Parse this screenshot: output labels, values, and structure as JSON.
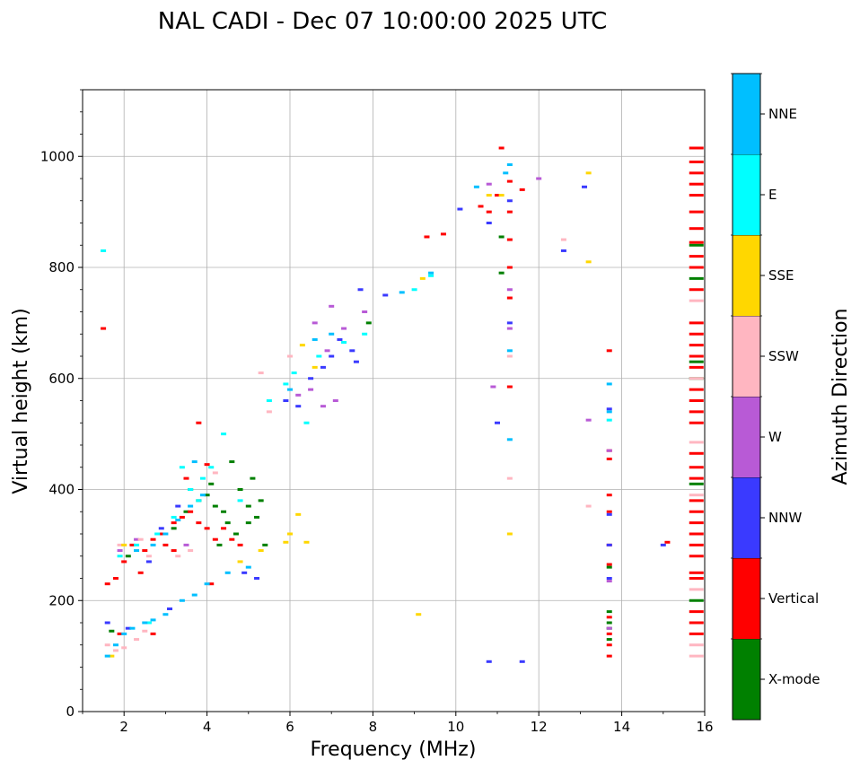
{
  "chart_data": {
    "type": "scatter",
    "title": "NAL CADI - Dec 07 10:00:00 2025 UTC",
    "xlabel": "Frequency (MHz)",
    "ylabel": "Virtual height (km)",
    "xlim": [
      1,
      16
    ],
    "ylim": [
      0,
      1120
    ],
    "xticks": [
      2,
      4,
      6,
      8,
      10,
      12,
      14,
      16
    ],
    "yticks": [
      0,
      200,
      400,
      600,
      800,
      1000
    ],
    "grid": true,
    "colorbar": {
      "label": "Azimuth Direction",
      "placement": "right",
      "categories": [
        {
          "name": "X-mode",
          "color": "#008000"
        },
        {
          "name": "Vertical",
          "color": "#ff0000"
        },
        {
          "name": "NNW",
          "color": "#3a3aff"
        },
        {
          "name": "W",
          "color": "#b85ad6"
        },
        {
          "name": "SSW",
          "color": "#ffb6c1"
        },
        {
          "name": "SSE",
          "color": "#ffd700"
        },
        {
          "name": "E",
          "color": "#00ffff"
        },
        {
          "name": "NNE",
          "color": "#00bfff"
        }
      ]
    },
    "series": [
      {
        "name": "X-mode",
        "points": [
          [
            1.7,
            145
          ],
          [
            2.1,
            280
          ],
          [
            3.2,
            330
          ],
          [
            3.5,
            360
          ],
          [
            3.8,
            380
          ],
          [
            4.0,
            390
          ],
          [
            4.1,
            410
          ],
          [
            4.2,
            370
          ],
          [
            4.4,
            360
          ],
          [
            4.5,
            340
          ],
          [
            4.7,
            320
          ],
          [
            4.8,
            400
          ],
          [
            5.0,
            340
          ],
          [
            5.0,
            370
          ],
          [
            5.2,
            350
          ],
          [
            5.3,
            380
          ],
          [
            5.4,
            300
          ],
          [
            4.3,
            300
          ],
          [
            3.6,
            400
          ],
          [
            4.6,
            450
          ],
          [
            5.1,
            420
          ],
          [
            7.9,
            700
          ],
          [
            11.1,
            855
          ],
          [
            11.1,
            790
          ],
          [
            13.7,
            180
          ],
          [
            13.7,
            160
          ],
          [
            13.7,
            150
          ],
          [
            13.7,
            130
          ],
          [
            13.7,
            260
          ],
          [
            15.8,
            200
          ],
          [
            15.8,
            410
          ],
          [
            15.8,
            600
          ],
          [
            15.8,
            630
          ],
          [
            15.8,
            780
          ],
          [
            15.8,
            840
          ]
        ]
      },
      {
        "name": "Vertical",
        "points": [
          [
            1.5,
            690
          ],
          [
            1.6,
            230
          ],
          [
            1.8,
            240
          ],
          [
            2.0,
            270
          ],
          [
            2.2,
            300
          ],
          [
            2.5,
            290
          ],
          [
            2.7,
            310
          ],
          [
            2.9,
            320
          ],
          [
            3.0,
            300
          ],
          [
            3.2,
            340
          ],
          [
            3.4,
            350
          ],
          [
            3.6,
            360
          ],
          [
            3.8,
            340
          ],
          [
            4.0,
            330
          ],
          [
            4.2,
            310
          ],
          [
            4.4,
            330
          ],
          [
            4.6,
            310
          ],
          [
            4.8,
            300
          ],
          [
            3.5,
            420
          ],
          [
            4.0,
            445
          ],
          [
            3.8,
            520
          ],
          [
            4.1,
            230
          ],
          [
            3.2,
            290
          ],
          [
            2.4,
            250
          ],
          [
            2.7,
            140
          ],
          [
            1.9,
            140
          ],
          [
            9.3,
            855
          ],
          [
            9.7,
            860
          ],
          [
            10.6,
            910
          ],
          [
            10.8,
            900
          ],
          [
            11.0,
            930
          ],
          [
            11.3,
            955
          ],
          [
            11.3,
            900
          ],
          [
            11.3,
            850
          ],
          [
            11.3,
            800
          ],
          [
            11.3,
            745
          ],
          [
            11.3,
            585
          ],
          [
            11.6,
            940
          ],
          [
            11.1,
            1015
          ],
          [
            13.7,
            650
          ],
          [
            13.7,
            470
          ],
          [
            13.7,
            455
          ],
          [
            13.7,
            390
          ],
          [
            13.7,
            360
          ],
          [
            13.7,
            300
          ],
          [
            13.7,
            265
          ],
          [
            13.7,
            170
          ],
          [
            13.7,
            140
          ],
          [
            13.7,
            120
          ],
          [
            13.7,
            100
          ],
          [
            15.1,
            305
          ],
          [
            15.8,
            1015
          ],
          [
            15.8,
            990
          ],
          [
            15.8,
            970
          ],
          [
            15.8,
            950
          ],
          [
            15.8,
            930
          ],
          [
            15.8,
            900
          ],
          [
            15.8,
            870
          ],
          [
            15.8,
            845
          ],
          [
            15.8,
            820
          ],
          [
            15.8,
            800
          ],
          [
            15.8,
            760
          ],
          [
            15.8,
            700
          ],
          [
            15.8,
            680
          ],
          [
            15.8,
            660
          ],
          [
            15.8,
            640
          ],
          [
            15.8,
            620
          ],
          [
            15.8,
            580
          ],
          [
            15.8,
            560
          ],
          [
            15.8,
            540
          ],
          [
            15.8,
            520
          ],
          [
            15.8,
            465
          ],
          [
            15.8,
            440
          ],
          [
            15.8,
            420
          ],
          [
            15.8,
            380
          ],
          [
            15.8,
            360
          ],
          [
            15.8,
            340
          ],
          [
            15.8,
            320
          ],
          [
            15.8,
            300
          ],
          [
            15.8,
            280
          ],
          [
            15.8,
            250
          ],
          [
            15.8,
            240
          ],
          [
            15.8,
            180
          ],
          [
            15.8,
            160
          ],
          [
            15.8,
            140
          ]
        ]
      },
      {
        "name": "NNW",
        "points": [
          [
            1.6,
            160
          ],
          [
            2.1,
            150
          ],
          [
            2.6,
            270
          ],
          [
            2.9,
            330
          ],
          [
            3.3,
            370
          ],
          [
            5.9,
            560
          ],
          [
            6.2,
            550
          ],
          [
            6.5,
            600
          ],
          [
            6.8,
            620
          ],
          [
            7.0,
            640
          ],
          [
            7.2,
            670
          ],
          [
            7.5,
            650
          ],
          [
            7.6,
            630
          ],
          [
            7.7,
            760
          ],
          [
            8.3,
            750
          ],
          [
            10.1,
            905
          ],
          [
            10.8,
            880
          ],
          [
            11.3,
            920
          ],
          [
            11.3,
            700
          ],
          [
            11.0,
            520
          ],
          [
            12.6,
            830
          ],
          [
            13.1,
            945
          ],
          [
            13.7,
            545
          ],
          [
            13.7,
            355
          ],
          [
            13.7,
            300
          ],
          [
            13.7,
            240
          ],
          [
            10.8,
            90
          ],
          [
            11.6,
            90
          ],
          [
            15.0,
            300
          ],
          [
            3.1,
            185
          ],
          [
            4.9,
            250
          ],
          [
            5.2,
            240
          ]
        ]
      },
      {
        "name": "W",
        "points": [
          [
            1.9,
            290
          ],
          [
            2.3,
            310
          ],
          [
            6.6,
            700
          ],
          [
            7.0,
            730
          ],
          [
            7.3,
            690
          ],
          [
            7.8,
            720
          ],
          [
            6.9,
            650
          ],
          [
            6.2,
            570
          ],
          [
            6.5,
            580
          ],
          [
            6.8,
            550
          ],
          [
            7.1,
            560
          ],
          [
            10.8,
            950
          ],
          [
            10.9,
            585
          ],
          [
            11.3,
            760
          ],
          [
            11.3,
            690
          ],
          [
            12.0,
            960
          ],
          [
            13.2,
            525
          ],
          [
            13.7,
            470
          ],
          [
            13.7,
            235
          ],
          [
            13.7,
            150
          ],
          [
            3.5,
            300
          ]
        ]
      },
      {
        "name": "SSW",
        "points": [
          [
            1.6,
            120
          ],
          [
            1.8,
            110
          ],
          [
            2.0,
            115
          ],
          [
            2.3,
            130
          ],
          [
            2.5,
            145
          ],
          [
            1.9,
            300
          ],
          [
            2.4,
            310
          ],
          [
            2.6,
            280
          ],
          [
            3.3,
            280
          ],
          [
            3.6,
            290
          ],
          [
            4.2,
            430
          ],
          [
            5.5,
            540
          ],
          [
            5.3,
            610
          ],
          [
            6.0,
            640
          ],
          [
            11.3,
            640
          ],
          [
            11.3,
            420
          ],
          [
            12.6,
            850
          ],
          [
            13.2,
            370
          ],
          [
            15.8,
            740
          ],
          [
            15.8,
            600
          ],
          [
            15.8,
            485
          ],
          [
            15.8,
            390
          ],
          [
            15.8,
            220
          ],
          [
            15.8,
            120
          ],
          [
            15.8,
            100
          ]
        ]
      },
      {
        "name": "SSE",
        "points": [
          [
            1.7,
            100
          ],
          [
            2.0,
            300
          ],
          [
            6.3,
            660
          ],
          [
            6.6,
            620
          ],
          [
            6.2,
            355
          ],
          [
            6.0,
            320
          ],
          [
            6.4,
            305
          ],
          [
            5.9,
            305
          ],
          [
            5.3,
            290
          ],
          [
            4.8,
            270
          ],
          [
            9.1,
            175
          ],
          [
            9.2,
            780
          ],
          [
            11.3,
            320
          ],
          [
            11.1,
            930
          ],
          [
            13.2,
            970
          ],
          [
            13.2,
            810
          ],
          [
            10.8,
            930
          ]
        ]
      },
      {
        "name": "E",
        "points": [
          [
            1.5,
            830
          ],
          [
            1.9,
            280
          ],
          [
            2.3,
            300
          ],
          [
            2.8,
            320
          ],
          [
            3.2,
            350
          ],
          [
            3.6,
            400
          ],
          [
            3.9,
            420
          ],
          [
            4.1,
            440
          ],
          [
            4.4,
            500
          ],
          [
            4.8,
            380
          ],
          [
            5.5,
            560
          ],
          [
            5.9,
            590
          ],
          [
            6.1,
            610
          ],
          [
            6.4,
            520
          ],
          [
            6.7,
            640
          ],
          [
            7.3,
            665
          ],
          [
            7.8,
            680
          ],
          [
            9.0,
            760
          ],
          [
            9.4,
            785
          ],
          [
            3.8,
            380
          ],
          [
            3.4,
            440
          ],
          [
            2.6,
            160
          ],
          [
            13.7,
            525
          ]
        ]
      },
      {
        "name": "NNE",
        "points": [
          [
            1.6,
            100
          ],
          [
            1.8,
            120
          ],
          [
            2.0,
            140
          ],
          [
            2.2,
            150
          ],
          [
            2.5,
            160
          ],
          [
            2.7,
            165
          ],
          [
            3.0,
            175
          ],
          [
            3.4,
            200
          ],
          [
            3.7,
            210
          ],
          [
            4.0,
            230
          ],
          [
            4.5,
            250
          ],
          [
            5.0,
            260
          ],
          [
            2.3,
            290
          ],
          [
            2.7,
            300
          ],
          [
            3.0,
            320
          ],
          [
            3.3,
            345
          ],
          [
            3.6,
            370
          ],
          [
            3.9,
            390
          ],
          [
            3.7,
            450
          ],
          [
            6.0,
            580
          ],
          [
            6.6,
            670
          ],
          [
            7.0,
            680
          ],
          [
            8.7,
            755
          ],
          [
            9.4,
            790
          ],
          [
            10.5,
            945
          ],
          [
            11.2,
            970
          ],
          [
            11.3,
            985
          ],
          [
            11.3,
            650
          ],
          [
            11.3,
            490
          ],
          [
            13.7,
            590
          ],
          [
            13.7,
            540
          ]
        ]
      }
    ]
  }
}
